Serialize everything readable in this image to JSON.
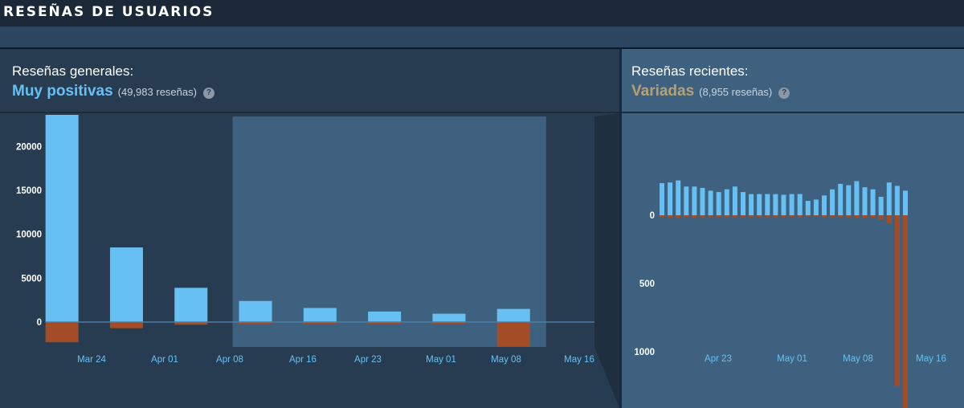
{
  "header": {
    "title": "RESEÑAS DE USUARIOS"
  },
  "overall": {
    "label": "Reseñas generales:",
    "rating": "Muy positivas",
    "count": "(49,983 reseñas)",
    "help": "?"
  },
  "recent": {
    "label": "Reseñas recientes:",
    "rating": "Variadas",
    "count": "(8,955 reseñas)",
    "help": "?"
  },
  "colors": {
    "positive": "#66c0f4",
    "negative": "#a34c25",
    "overall_rating": "#66c0f4",
    "recent_rating": "#b9a074"
  },
  "chart_data": [
    {
      "type": "bar",
      "name": "overall",
      "categories": [
        "Mar 24",
        "Apr 01",
        "Apr 08",
        "Apr 16",
        "Apr 23",
        "May 01",
        "May 08",
        "May 16"
      ],
      "series": [
        {
          "values": [
            23600,
            8500,
            3900,
            2400,
            1600,
            1200,
            950,
            1500
          ]
        },
        {
          "values": [
            -2300,
            -700,
            -300,
            -200,
            -150,
            -100,
            -100,
            -2800
          ]
        }
      ],
      "x_tick_labels": [
        "Mar 24",
        "Apr 01",
        "Apr 08",
        "Apr 16",
        "Apr 23",
        "May 01",
        "May 08",
        "May 16"
      ],
      "y_ticks": [
        0,
        5000,
        10000,
        15000,
        20000
      ],
      "ylim": [
        -2800,
        23600
      ],
      "highlight_range": [
        "Apr 16",
        "May 16"
      ]
    },
    {
      "type": "bar",
      "name": "recent",
      "series": [
        {
          "values": [
            235,
            240,
            255,
            210,
            210,
            200,
            180,
            170,
            190,
            210,
            170,
            155,
            155,
            155,
            155,
            150,
            155,
            155,
            105,
            115,
            145,
            190,
            230,
            220,
            250,
            205,
            190,
            135,
            240,
            215,
            180
          ]
        },
        {
          "values": [
            -15,
            -20,
            -20,
            -15,
            -20,
            -15,
            -15,
            -15,
            -15,
            -15,
            -15,
            -15,
            -15,
            -15,
            -15,
            -15,
            -15,
            -15,
            -10,
            -10,
            -15,
            -15,
            -15,
            -15,
            -20,
            -20,
            -20,
            -30,
            -60,
            -1250,
            -1420
          ]
        }
      ],
      "x_tick_labels": [
        "Apr 23",
        "May 01",
        "May 08",
        "May 16"
      ],
      "y_ticks": [
        0,
        500,
        1000
      ]
    }
  ]
}
